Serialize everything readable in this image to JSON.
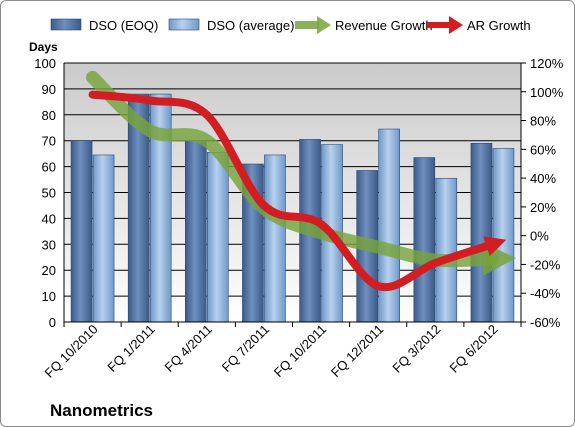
{
  "chart_data": {
    "type": "bar",
    "categories": [
      "FQ 10/2010",
      "FQ 1/2011",
      "FQ 4/2011",
      "FQ 7/2011",
      "FQ 10/2011",
      "FQ 12/2011",
      "FQ 3/2012",
      "FQ 6/2012"
    ],
    "series": [
      {
        "name": "DSO (EOQ)",
        "type": "bar",
        "axis": "left",
        "color": "#4f6fa0",
        "values": [
          70,
          88,
          70,
          61,
          70.5,
          58.5,
          63.5,
          69
        ]
      },
      {
        "name": "DSO (average)",
        "type": "bar",
        "axis": "left",
        "color": "#8fb4dd",
        "values": [
          64.5,
          88,
          65.5,
          64.5,
          68.5,
          74.5,
          55.5,
          67
        ]
      },
      {
        "name": "Revenue Growth",
        "type": "line",
        "axis": "right",
        "color": "#77a33c",
        "values": [
          110,
          73,
          66,
          19,
          2,
          -8,
          -17,
          -16
        ]
      },
      {
        "name": "AR Growth",
        "type": "line",
        "axis": "right",
        "color": "#d21e22",
        "values": [
          98,
          94,
          84,
          21,
          8,
          -35,
          -19,
          -6
        ]
      }
    ],
    "ylabel": "Days",
    "ylim": [
      0,
      100
    ],
    "y_ticks": [
      "0",
      "10",
      "20",
      "30",
      "40",
      "50",
      "60",
      "70",
      "80",
      "90",
      "100"
    ],
    "y2lim": [
      -60,
      120
    ],
    "y2_ticks": [
      "-60%",
      "-40%",
      "-20%",
      "0%",
      "20%",
      "40%",
      "60%",
      "80%",
      "100%",
      "120%"
    ],
    "grid": true,
    "legend_position": "top",
    "company": "Nanometrics"
  }
}
